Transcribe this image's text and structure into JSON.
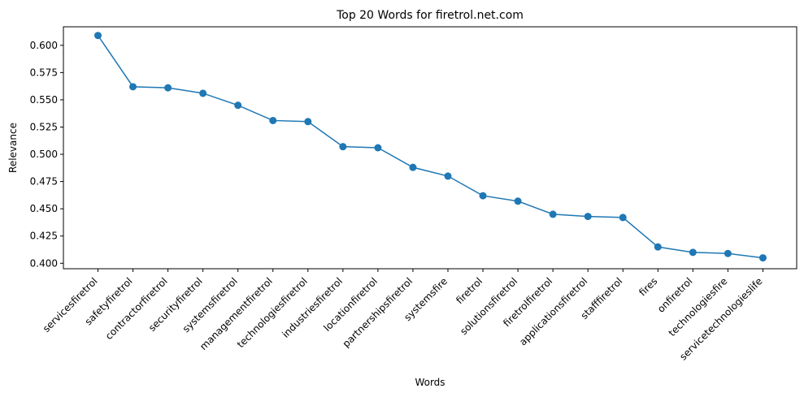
{
  "chart_data": {
    "type": "line",
    "title": "Top 20 Words for firetrol.net.com",
    "xlabel": "Words",
    "ylabel": "Relevance",
    "ylim": [
      0.395,
      0.617
    ],
    "yticks": [
      "0.400",
      "0.425",
      "0.450",
      "0.475",
      "0.500",
      "0.525",
      "0.550",
      "0.575",
      "0.600"
    ],
    "grid": false,
    "series_color": "#1f77b4",
    "categories": [
      "servicesfiretrol",
      "safetyfiretrol",
      "contractorfiretrol",
      "securityfiretrol",
      "systemsfiretrol",
      "managementfiretrol",
      "technologiesfiretrol",
      "industriesfiretrol",
      "locationfiretrol",
      "partnershipsfiretrol",
      "systemsfire",
      "firetrol",
      "solutionsfiretrol",
      "firetrolfiretrol",
      "applicationsfiretrol",
      "stafffiretrol",
      "fires",
      "onfiretrol",
      "technologiesfire",
      "servicetechnologieslife"
    ],
    "values": [
      0.609,
      0.562,
      0.561,
      0.556,
      0.545,
      0.531,
      0.53,
      0.507,
      0.506,
      0.488,
      0.48,
      0.462,
      0.457,
      0.445,
      0.443,
      0.442,
      0.415,
      0.41,
      0.409,
      0.405
    ]
  }
}
